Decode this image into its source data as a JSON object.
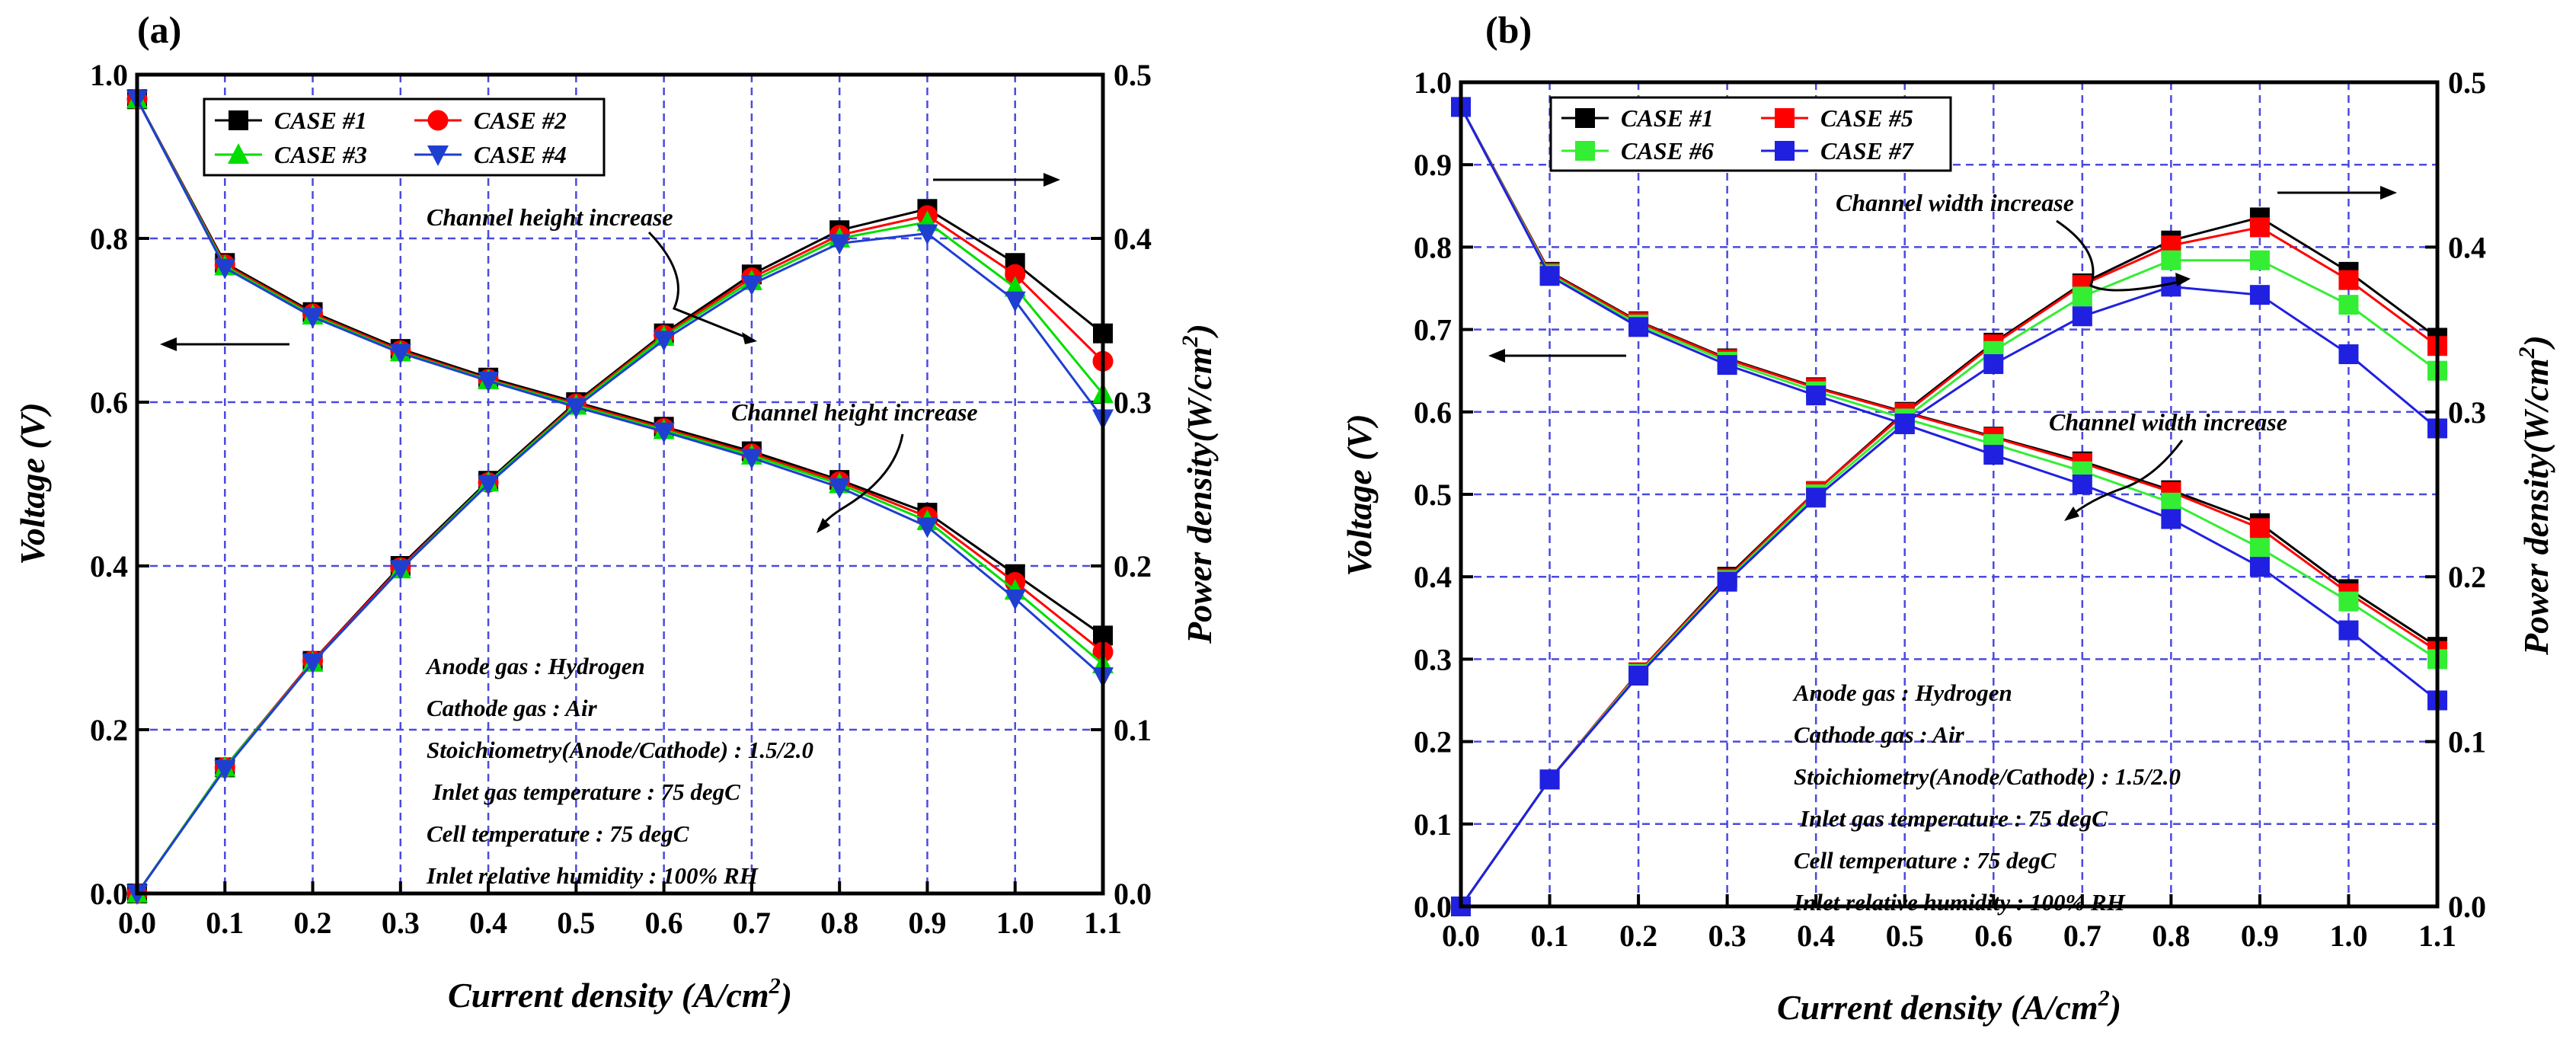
{
  "chart_data": [
    {
      "type": "line",
      "panel_label": "(a)",
      "xlabel_main": "Current density (A/cm",
      "xlabel_sup": "2",
      "xlabel_end": ")",
      "ylabel_left": "Voltage (V)",
      "ylabel_right_main": "Power density(W/cm",
      "ylabel_right_sup": "2",
      "ylabel_right_end": ")",
      "xlim": [
        0.0,
        1.1
      ],
      "ylim_left": [
        0.0,
        1.0
      ],
      "ylim_right": [
        0.0,
        0.5
      ],
      "xticks": [
        "0.0",
        "0.1",
        "0.2",
        "0.3",
        "0.4",
        "0.5",
        "0.6",
        "0.7",
        "0.8",
        "0.9",
        "1.0",
        "1.1"
      ],
      "yticks_left": [
        "0.0",
        "0.2",
        "0.4",
        "0.6",
        "0.8",
        "1.0"
      ],
      "yticks_right": [
        "0.0",
        "0.1",
        "0.2",
        "0.3",
        "0.4",
        "0.5"
      ],
      "grid": true,
      "legend_position": "top-left",
      "x": [
        0.0,
        0.1,
        0.2,
        0.3,
        0.4,
        0.5,
        0.6,
        0.7,
        0.8,
        0.9,
        1.0,
        1.1
      ],
      "series": [
        {
          "name": "CASE #1",
          "color": "#000000",
          "marker": "square",
          "voltage": [
            0.97,
            0.77,
            0.71,
            0.665,
            0.63,
            0.6,
            0.57,
            0.54,
            0.505,
            0.465,
            0.39,
            0.315
          ],
          "power": [
            0.0,
            0.077,
            0.142,
            0.2,
            0.252,
            0.3,
            0.342,
            0.378,
            0.405,
            0.418,
            0.385,
            0.342
          ]
        },
        {
          "name": "CASE #2",
          "color": "#ff0000",
          "marker": "circle",
          "voltage": [
            0.97,
            0.768,
            0.708,
            0.663,
            0.628,
            0.598,
            0.568,
            0.537,
            0.503,
            0.46,
            0.38,
            0.295
          ],
          "power": [
            0.0,
            0.077,
            0.142,
            0.199,
            0.251,
            0.299,
            0.341,
            0.376,
            0.402,
            0.414,
            0.378,
            0.325
          ]
        },
        {
          "name": "CASE #3",
          "color": "#00dd00",
          "marker": "triangle-up",
          "voltage": [
            0.97,
            0.766,
            0.706,
            0.661,
            0.627,
            0.596,
            0.566,
            0.535,
            0.5,
            0.455,
            0.37,
            0.28
          ],
          "power": [
            0.0,
            0.077,
            0.141,
            0.198,
            0.251,
            0.298,
            0.34,
            0.374,
            0.4,
            0.41,
            0.37,
            0.305
          ]
        },
        {
          "name": "CASE #4",
          "color": "#1f3fd0",
          "marker": "triangle-down",
          "voltage": [
            0.97,
            0.764,
            0.704,
            0.66,
            0.626,
            0.594,
            0.564,
            0.532,
            0.496,
            0.448,
            0.36,
            0.265
          ],
          "power": [
            0.0,
            0.076,
            0.141,
            0.198,
            0.25,
            0.297,
            0.338,
            0.372,
            0.397,
            0.403,
            0.362,
            0.29
          ]
        }
      ],
      "annotations": {
        "power_trend": "Channel height increase",
        "voltage_trend": "Channel height increase"
      },
      "conditions": [
        "Anode gas : Hydrogen",
        "Cathode gas : Air",
        "Stoichiometry(Anode/Cathode) : 1.5/2.0",
        "Inlet gas temperature : 75 degC",
        "Cell temperature : 75 degC",
        "Inlet relative humidity : 100% RH"
      ]
    },
    {
      "type": "line",
      "panel_label": "(b)",
      "xlabel_main": "Current density (A/cm",
      "xlabel_sup": "2",
      "xlabel_end": ")",
      "ylabel_left": "Voltage (V)",
      "ylabel_right_main": "Power density(W/cm",
      "ylabel_right_sup": "2",
      "ylabel_right_end": ")",
      "xlim": [
        0.0,
        1.1
      ],
      "ylim_left": [
        0.0,
        1.0
      ],
      "ylim_right": [
        0.0,
        0.5
      ],
      "xticks": [
        "0.0",
        "0.1",
        "0.2",
        "0.3",
        "0.4",
        "0.5",
        "0.6",
        "0.7",
        "0.8",
        "0.9",
        "1.0",
        "1.1"
      ],
      "yticks_left": [
        "0.0",
        "0.1",
        "0.2",
        "0.3",
        "0.4",
        "0.5",
        "0.6",
        "0.7",
        "0.8",
        "0.9",
        "1.0"
      ],
      "yticks_right": [
        "0.0",
        "0.1",
        "0.2",
        "0.3",
        "0.4",
        "0.5"
      ],
      "grid": true,
      "legend_position": "top-left",
      "x": [
        0.0,
        0.1,
        0.2,
        0.3,
        0.4,
        0.5,
        0.6,
        0.7,
        0.8,
        0.9,
        1.0,
        1.1
      ],
      "series": [
        {
          "name": "CASE #1",
          "color": "#000000",
          "marker": "square",
          "voltage": [
            0.97,
            0.77,
            0.71,
            0.665,
            0.63,
            0.6,
            0.57,
            0.54,
            0.505,
            0.465,
            0.385,
            0.315
          ],
          "power": [
            0.0,
            0.077,
            0.142,
            0.2,
            0.252,
            0.3,
            0.342,
            0.378,
            0.404,
            0.418,
            0.385,
            0.345
          ]
        },
        {
          "name": "CASE #5",
          "color": "#ff0000",
          "marker": "square",
          "voltage": [
            0.97,
            0.769,
            0.709,
            0.664,
            0.629,
            0.599,
            0.569,
            0.538,
            0.503,
            0.459,
            0.38,
            0.31
          ],
          "power": [
            0.0,
            0.077,
            0.142,
            0.199,
            0.252,
            0.299,
            0.341,
            0.377,
            0.401,
            0.412,
            0.38,
            0.34
          ]
        },
        {
          "name": "CASE #6",
          "color": "#33ee33",
          "marker": "square",
          "voltage": [
            0.97,
            0.767,
            0.706,
            0.661,
            0.625,
            0.592,
            0.561,
            0.528,
            0.49,
            0.435,
            0.37,
            0.3
          ],
          "power": [
            0.0,
            0.077,
            0.141,
            0.198,
            0.25,
            0.296,
            0.337,
            0.37,
            0.392,
            0.392,
            0.365,
            0.325
          ]
        },
        {
          "name": "CASE #7",
          "color": "#2020e0",
          "marker": "square",
          "voltage": [
            0.97,
            0.765,
            0.703,
            0.657,
            0.62,
            0.585,
            0.548,
            0.512,
            0.47,
            0.412,
            0.335,
            0.25
          ],
          "power": [
            0.0,
            0.077,
            0.14,
            0.197,
            0.248,
            0.293,
            0.329,
            0.358,
            0.376,
            0.371,
            0.335,
            0.29
          ]
        }
      ],
      "annotations": {
        "power_trend": "Channel width increase",
        "voltage_trend": "Channel width increase"
      },
      "conditions": [
        "Anode gas : Hydrogen",
        "Cathode gas : Air",
        "Stoichiometry(Anode/Cathode) : 1.5/2.0",
        "Inlet gas temperature : 75 degC",
        "Cell temperature : 75 degC",
        "Inlet relative humidity : 100% RH"
      ]
    }
  ]
}
